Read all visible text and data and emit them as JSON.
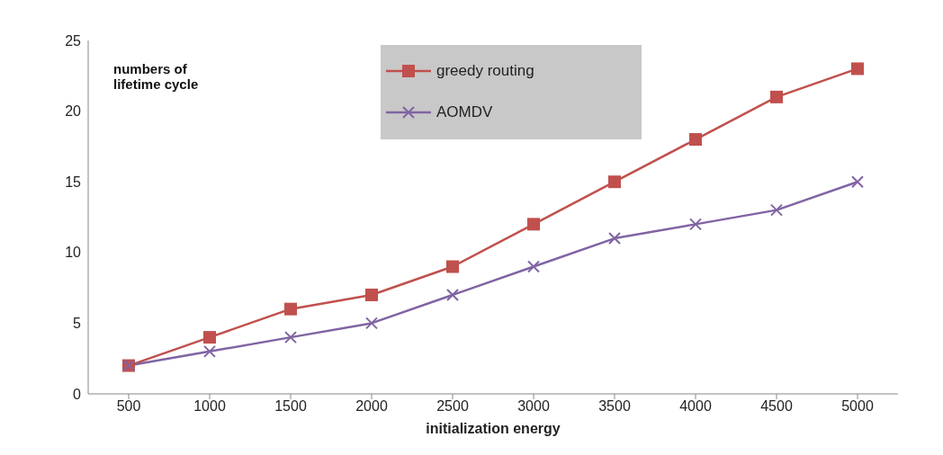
{
  "chart_data": {
    "type": "line",
    "xlabel": "initialization energy",
    "ylabel": "numbers of lifetime cycle",
    "categories": [
      "500",
      "1000",
      "1500",
      "2000",
      "2500",
      "3000",
      "3500",
      "4000",
      "4500",
      "5000"
    ],
    "series": [
      {
        "name": "greedy routing",
        "color": "#c0504d",
        "marker": "square",
        "values": [
          2,
          4,
          6,
          7,
          9,
          12,
          15,
          18,
          21,
          23
        ]
      },
      {
        "name": "AOMDV",
        "color": "#8064a2",
        "marker": "cross",
        "values": [
          2,
          3,
          4,
          5,
          7,
          9,
          11,
          12,
          13,
          15
        ]
      }
    ],
    "ylim": [
      0,
      25
    ],
    "yticks": [
      0,
      5,
      10,
      15,
      20,
      25
    ],
    "grid": false,
    "legend": "top",
    "line_style": "solid"
  }
}
